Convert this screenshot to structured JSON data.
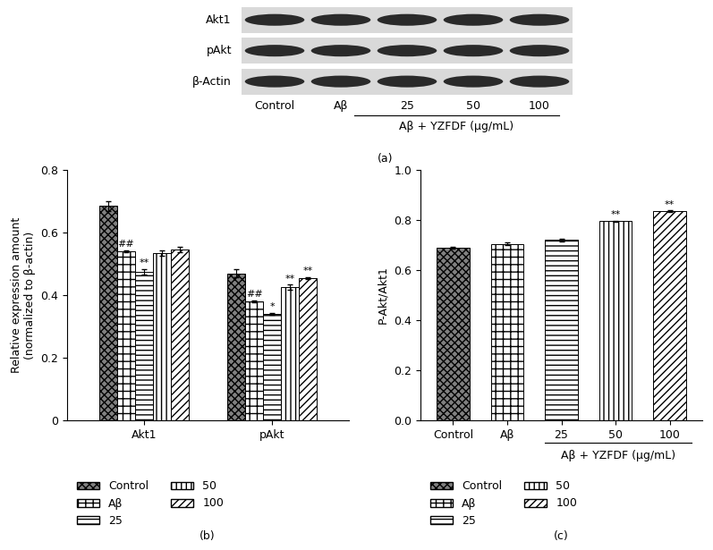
{
  "blot": {
    "label": "(a)",
    "rows": [
      "Akt1",
      "pAkt",
      "β-Actin"
    ],
    "lanes": [
      "Control",
      "Aβ",
      "25",
      "50",
      "100"
    ],
    "group_label": "Aβ + YZFDF (μg/mL)"
  },
  "chart_data": [
    {
      "type": "bar",
      "label": "(b)",
      "y_label": "Relative expression amount\n(normalized to β-actin)",
      "categories": [
        "Akt1",
        "pAkt"
      ],
      "series": [
        {
          "name": "Control",
          "color": "#808080",
          "values": [
            0.685,
            0.47
          ],
          "errors": [
            0.015,
            0.012
          ],
          "marks": [
            "",
            ""
          ]
        },
        {
          "name": "Aβ",
          "color": "#ffffff",
          "values": [
            0.54,
            0.38
          ],
          "errors": [
            0.003,
            0.003
          ],
          "marks": [
            "##",
            "##"
          ]
        },
        {
          "name": "25",
          "color": "#ffffff",
          "values": [
            0.475,
            0.34
          ],
          "errors": [
            0.008,
            0.003
          ],
          "marks": [
            "**",
            "*"
          ]
        },
        {
          "name": "50",
          "color": "#ffffff",
          "values": [
            0.535,
            0.425
          ],
          "errors": [
            0.008,
            0.008
          ],
          "marks": [
            "",
            "**"
          ]
        },
        {
          "name": "100",
          "color": "#ffffff",
          "values": [
            0.545,
            0.455
          ],
          "errors": [
            0.008,
            0.003
          ],
          "marks": [
            "",
            "**"
          ]
        }
      ],
      "ylim": [
        0,
        0.8
      ],
      "yticks": [
        0,
        0.2,
        0.4,
        0.6,
        0.8
      ],
      "grid": false,
      "legend": "below"
    },
    {
      "type": "bar",
      "label": "(c)",
      "y_label": "P-Akt/Akt1",
      "categories": [
        "Control",
        "Aβ",
        "25",
        "50",
        "100"
      ],
      "group_label": "Aβ + YZFDF (μg/mL)",
      "values": [
        0.69,
        0.705,
        0.72,
        0.795,
        0.835
      ],
      "errors": [
        0.003,
        0.005,
        0.005,
        0.003,
        0.003
      ],
      "marks": [
        "",
        "",
        "",
        "**",
        "**"
      ],
      "colors": [
        "#808080",
        "#ffffff",
        "#ffffff",
        "#ffffff",
        "#ffffff"
      ],
      "ylim": [
        0,
        1.0
      ],
      "yticks": [
        {
          "value": 0,
          "label": "0.0"
        },
        0.2,
        0.4,
        0.6,
        0.8,
        {
          "value": 1,
          "label": "1.0"
        }
      ],
      "grid": false,
      "legend": "below"
    }
  ]
}
